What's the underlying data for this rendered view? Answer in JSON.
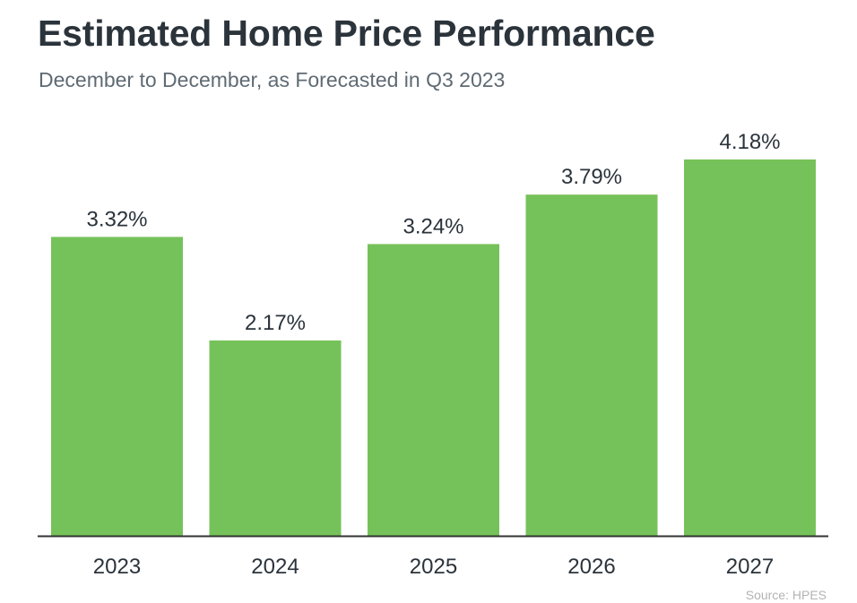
{
  "header": {
    "title": "Estimated Home Price Performance",
    "subtitle": "December to December, as Forecasted in Q3 2023"
  },
  "footer": {
    "source": "Source: HPES"
  },
  "colors": {
    "bar": "#76c25a",
    "axis": "#333333",
    "label": "#2b333b"
  },
  "chart_data": {
    "type": "bar",
    "title": "Estimated Home Price Performance",
    "subtitle": "December to December, as Forecasted in Q3 2023",
    "categories": [
      "2023",
      "2024",
      "2025",
      "2026",
      "2027"
    ],
    "values": [
      3.32,
      2.17,
      3.24,
      3.79,
      4.18
    ],
    "value_labels": [
      "3.32%",
      "2.17%",
      "3.24%",
      "3.79%",
      "4.18%"
    ],
    "xlabel": "",
    "ylabel": "",
    "ylim": [
      0,
      4.18
    ],
    "grid": false,
    "legend": "none"
  }
}
